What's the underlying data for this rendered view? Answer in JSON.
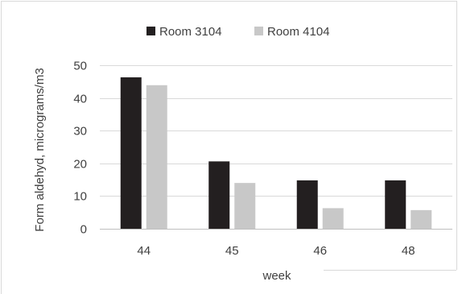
{
  "chart_data": {
    "type": "bar",
    "title": "",
    "xlabel": "week",
    "ylabel": "Form aldehyd, micrograms/m3",
    "categories": [
      "44",
      "45",
      "46",
      "48"
    ],
    "ylim": [
      0,
      50
    ],
    "yticks": [
      0,
      10,
      20,
      30,
      40,
      50
    ],
    "grid": true,
    "legend_position": "top-center",
    "series": [
      {
        "name": "Room 3104",
        "values": [
          46.3,
          20.6,
          14.8,
          14.8
        ],
        "color": "#231f20"
      },
      {
        "name": "Room 4104",
        "values": [
          43.9,
          14.0,
          6.3,
          5.7
        ],
        "color": "#c8c8c8"
      }
    ]
  }
}
